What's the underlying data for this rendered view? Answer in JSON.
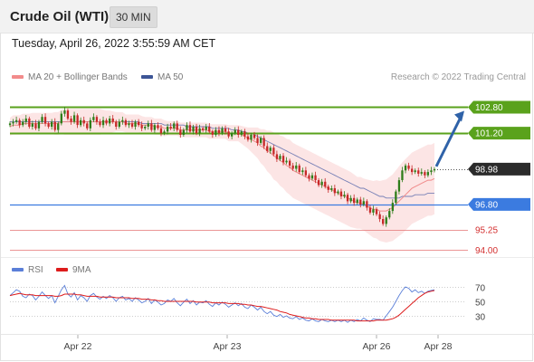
{
  "header": {
    "title": "Crude Oil (WTI)",
    "timeframe": "30 MIN"
  },
  "datetime": "Tuesday, April 26, 2022 3:55:59 AM CET",
  "legend": {
    "ma20": "MA 20 + Bollinger Bands",
    "ma50": "MA 50",
    "rsi": "RSI",
    "ma9": "9MA",
    "credit": "Research © 2022 Trading Central"
  },
  "colors": {
    "up": "#2e7d1a",
    "down": "#c62828",
    "ma20": "#f08a8a",
    "ma50": "#5566aa",
    "band": "#fbdada",
    "resistance": "#5aa21c",
    "support": "#3b7be0",
    "target": "#e57373",
    "price": "#2b2b2b",
    "arrow": "#2f62a8",
    "rsi": "#5b7fd8",
    "rsi_ma": "#dd1c1c"
  },
  "chart_data": [
    {
      "type": "candlestick",
      "title": "Crude Oil (WTI)",
      "timeframe": "30 MIN",
      "x_ticks": [
        "Apr 22",
        "Apr 23",
        "Apr 26",
        "Apr 28"
      ],
      "ylim": [
        93.5,
        104.0
      ],
      "levels": [
        {
          "value": 102.8,
          "label": "102.80",
          "kind": "resistance"
        },
        {
          "value": 101.2,
          "label": "101.20",
          "kind": "resistance"
        },
        {
          "value": 98.98,
          "label": "98.98",
          "kind": "last_price"
        },
        {
          "value": 96.8,
          "label": "96.80",
          "kind": "support"
        },
        {
          "value": 95.25,
          "label": "95.25",
          "kind": "target"
        },
        {
          "value": 94.0,
          "label": "94.00",
          "kind": "target"
        }
      ],
      "close": [
        101.8,
        101.9,
        102.0,
        101.7,
        101.9,
        102.1,
        101.6,
        101.8,
        101.5,
        101.9,
        102.2,
        101.8,
        101.6,
        101.9,
        101.4,
        101.8,
        102.4,
        102.6,
        102.1,
        101.9,
        102.3,
        101.7,
        102.0,
        101.8,
        101.5,
        102.0,
        102.2,
        101.9,
        101.7,
        102.0,
        101.8,
        102.1,
        101.9,
        101.6,
        101.9,
        102.0,
        101.7,
        101.8,
        101.6,
        101.9,
        101.7,
        101.5,
        101.6,
        101.8,
        101.4,
        101.7,
        101.5,
        101.2,
        101.3,
        101.6,
        101.5,
        101.8,
        101.4,
        101.1,
        101.4,
        101.7,
        101.3,
        101.6,
        101.2,
        101.5,
        101.4,
        101.6,
        101.3,
        101.1,
        101.4,
        101.2,
        101.5,
        101.3,
        101.0,
        101.2,
        101.4,
        101.1,
        101.3,
        101.0,
        100.8,
        101.1,
        100.9,
        100.6,
        100.9,
        100.4,
        100.1,
        100.3,
        99.9,
        99.6,
        99.8,
        99.4,
        99.5,
        99.2,
        99.0,
        99.2,
        98.8,
        98.9,
        98.6,
        98.4,
        98.6,
        98.3,
        98.0,
        98.2,
        97.9,
        97.7,
        97.8,
        97.5,
        97.6,
        97.3,
        97.4,
        97.0,
        97.2,
        96.9,
        97.1,
        96.8,
        97.0,
        96.6,
        96.3,
        96.5,
        96.2,
        95.9,
        95.6,
        96.0,
        96.4,
        96.9,
        97.6,
        98.3,
        98.9,
        99.2,
        99.0,
        98.8,
        98.9,
        98.7,
        98.8,
        98.6,
        98.8,
        98.9,
        98.98
      ],
      "ma20": [
        101.6,
        101.7,
        101.7,
        101.7,
        101.8,
        101.8,
        101.8,
        101.8,
        101.8,
        101.8,
        101.8,
        101.8,
        101.8,
        101.8,
        101.8,
        101.8,
        101.9,
        101.9,
        101.9,
        101.9,
        101.9,
        101.9,
        101.9,
        101.9,
        101.9,
        101.9,
        101.9,
        101.9,
        101.9,
        101.9,
        101.9,
        101.9,
        101.9,
        101.9,
        101.9,
        101.9,
        101.8,
        101.8,
        101.8,
        101.8,
        101.8,
        101.7,
        101.7,
        101.7,
        101.7,
        101.6,
        101.6,
        101.6,
        101.5,
        101.5,
        101.5,
        101.5,
        101.5,
        101.4,
        101.4,
        101.4,
        101.4,
        101.4,
        101.4,
        101.4,
        101.4,
        101.4,
        101.3,
        101.3,
        101.3,
        101.3,
        101.3,
        101.3,
        101.2,
        101.2,
        101.2,
        101.2,
        101.1,
        101.0,
        100.9,
        100.8,
        100.7,
        100.6,
        100.4,
        100.3,
        100.1,
        100.0,
        99.8,
        99.7,
        99.5,
        99.4,
        99.2,
        99.1,
        98.9,
        98.8,
        98.7,
        98.6,
        98.5,
        98.4,
        98.3,
        98.2,
        98.1,
        98.0,
        97.9,
        97.8,
        97.7,
        97.6,
        97.5,
        97.4,
        97.3,
        97.2,
        97.1,
        97.0,
        96.9,
        96.9,
        96.8,
        96.7,
        96.6,
        96.5,
        96.5,
        96.4,
        96.4,
        96.4,
        96.5,
        96.6,
        96.8,
        97.0,
        97.2,
        97.4,
        97.6,
        97.8,
        97.9,
        98.0,
        98.1,
        98.2,
        98.3,
        98.3,
        98.4
      ],
      "ma50": [
        101.9,
        101.9,
        101.9,
        101.9,
        101.9,
        101.9,
        101.9,
        101.9,
        101.9,
        101.9,
        101.9,
        101.9,
        101.9,
        101.9,
        101.9,
        101.9,
        101.9,
        101.9,
        101.9,
        101.9,
        101.9,
        101.9,
        101.9,
        101.9,
        101.9,
        101.9,
        101.9,
        101.9,
        101.9,
        101.9,
        101.9,
        101.9,
        101.9,
        101.9,
        101.9,
        101.9,
        101.9,
        101.9,
        101.9,
        101.9,
        101.9,
        101.8,
        101.8,
        101.8,
        101.8,
        101.8,
        101.8,
        101.8,
        101.7,
        101.7,
        101.7,
        101.7,
        101.7,
        101.7,
        101.7,
        101.6,
        101.6,
        101.6,
        101.6,
        101.6,
        101.6,
        101.6,
        101.6,
        101.5,
        101.5,
        101.5,
        101.5,
        101.5,
        101.5,
        101.4,
        101.4,
        101.4,
        101.3,
        101.3,
        101.2,
        101.2,
        101.1,
        101.0,
        100.9,
        100.8,
        100.7,
        100.6,
        100.5,
        100.4,
        100.3,
        100.2,
        100.1,
        100.0,
        99.9,
        99.8,
        99.7,
        99.6,
        99.5,
        99.4,
        99.3,
        99.2,
        99.1,
        99.0,
        98.9,
        98.8,
        98.7,
        98.6,
        98.5,
        98.4,
        98.3,
        98.2,
        98.1,
        98.0,
        97.9,
        97.8,
        97.8,
        97.7,
        97.6,
        97.5,
        97.4,
        97.3,
        97.3,
        97.2,
        97.2,
        97.2,
        97.2,
        97.2,
        97.3,
        97.3,
        97.3,
        97.3,
        97.4,
        97.4,
        97.4,
        97.4,
        97.5,
        97.5,
        97.5
      ],
      "bb_width": [
        0.55,
        0.6,
        0.6,
        0.6,
        0.6,
        0.6,
        0.6,
        0.65,
        0.65,
        0.65,
        0.65,
        0.65,
        0.65,
        0.65,
        0.7,
        0.7,
        0.75,
        0.8,
        0.8,
        0.8,
        0.8,
        0.8,
        0.8,
        0.8,
        0.8,
        0.8,
        0.8,
        0.8,
        0.8,
        0.75,
        0.7,
        0.7,
        0.65,
        0.6,
        0.6,
        0.6,
        0.55,
        0.55,
        0.55,
        0.55,
        0.55,
        0.55,
        0.5,
        0.5,
        0.5,
        0.5,
        0.5,
        0.5,
        0.5,
        0.45,
        0.45,
        0.45,
        0.45,
        0.45,
        0.45,
        0.45,
        0.45,
        0.45,
        0.45,
        0.45,
        0.45,
        0.45,
        0.45,
        0.45,
        0.45,
        0.45,
        0.45,
        0.45,
        0.5,
        0.5,
        0.5,
        0.5,
        0.55,
        0.6,
        0.65,
        0.75,
        0.85,
        0.95,
        1.05,
        1.15,
        1.25,
        1.35,
        1.45,
        1.5,
        1.55,
        1.6,
        1.65,
        1.7,
        1.7,
        1.7,
        1.7,
        1.7,
        1.7,
        1.7,
        1.7,
        1.7,
        1.7,
        1.7,
        1.7,
        1.7,
        1.7,
        1.7,
        1.7,
        1.7,
        1.7,
        1.7,
        1.7,
        1.65,
        1.6,
        1.6,
        1.6,
        1.65,
        1.7,
        1.75,
        1.8,
        1.85,
        1.9,
        1.95,
        2.0,
        2.05,
        2.1,
        2.15,
        2.2,
        2.2,
        2.2,
        2.2,
        2.2,
        2.2,
        2.2,
        2.2,
        2.2,
        2.2,
        2.2,
        2.2,
        2.2
      ]
    },
    {
      "type": "line",
      "title": "RSI",
      "y_ticks": [
        "70",
        "50",
        "30"
      ],
      "ylim": [
        10,
        85
      ],
      "series": [
        {
          "name": "RSI",
          "values": [
            58,
            62,
            66,
            64,
            57,
            55,
            60,
            58,
            52,
            57,
            63,
            58,
            54,
            58,
            48,
            57,
            66,
            72,
            60,
            56,
            62,
            52,
            58,
            55,
            50,
            58,
            61,
            56,
            53,
            57,
            54,
            58,
            55,
            50,
            55,
            57,
            52,
            54,
            50,
            55,
            52,
            48,
            50,
            54,
            47,
            52,
            49,
            45,
            47,
            52,
            50,
            54,
            48,
            44,
            49,
            53,
            47,
            51,
            45,
            49,
            48,
            51,
            46,
            43,
            48,
            45,
            49,
            46,
            42,
            45,
            48,
            44,
            47,
            42,
            40,
            45,
            42,
            38,
            42,
            36,
            33,
            36,
            31,
            29,
            32,
            28,
            30,
            27,
            26,
            29,
            25,
            27,
            24,
            23,
            26,
            23,
            22,
            25,
            23,
            22,
            24,
            22,
            24,
            22,
            24,
            21,
            24,
            22,
            25,
            23,
            27,
            24,
            22,
            26,
            25,
            25,
            24,
            30,
            36,
            42,
            50,
            58,
            65,
            70,
            68,
            63,
            66,
            62,
            64,
            61,
            64,
            65,
            66
          ]
        },
        {
          "name": "9MA",
          "values": [
            58,
            59,
            60,
            61,
            60,
            59,
            59,
            59,
            58,
            58,
            58,
            58,
            58,
            58,
            57,
            57,
            58,
            60,
            60,
            60,
            60,
            59,
            59,
            58,
            57,
            57,
            57,
            57,
            56,
            56,
            56,
            56,
            56,
            55,
            55,
            55,
            55,
            55,
            54,
            54,
            54,
            53,
            53,
            53,
            52,
            52,
            51,
            51,
            50,
            50,
            50,
            50,
            50,
            50,
            50,
            50,
            50,
            50,
            49,
            49,
            49,
            49,
            49,
            48,
            48,
            48,
            48,
            48,
            47,
            47,
            47,
            47,
            46,
            46,
            45,
            45,
            44,
            43,
            43,
            42,
            41,
            40,
            39,
            38,
            36,
            35,
            34,
            32,
            31,
            30,
            29,
            28,
            27,
            27,
            26,
            26,
            25,
            25,
            25,
            25,
            24,
            24,
            24,
            24,
            24,
            24,
            24,
            24,
            23,
            23,
            23,
            23,
            23,
            23,
            24,
            24,
            24,
            24,
            25,
            26,
            28,
            31,
            35,
            39,
            43,
            47,
            51,
            55,
            58,
            61,
            63,
            64,
            65
          ]
        }
      ]
    }
  ]
}
